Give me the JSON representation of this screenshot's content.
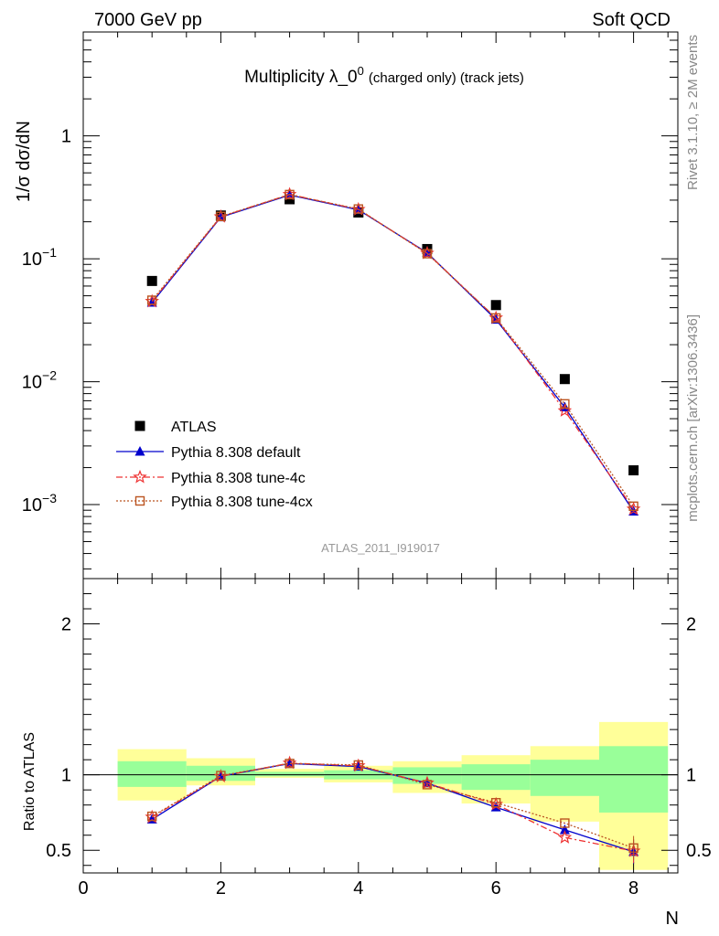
{
  "header": {
    "left": "7000 GeV pp",
    "right": "Soft QCD"
  },
  "side_text": {
    "top": "Rivet 3.1.10, ≥ 2M events",
    "bottom": "mcplots.cern.ch [arXiv:1306.3436]"
  },
  "chart_data": [
    {
      "type": "scatter",
      "title_main": "Multiplicity λ_0",
      "title_sup": "0",
      "title_suffix": "(charged only) (track jets)",
      "ylabel": "1/σ dσ/dN",
      "yscale": "log",
      "ylim": [
        0.00025,
        7
      ],
      "xlim": [
        0,
        8.6
      ],
      "watermark": "ATLAS_2011_I919017",
      "yticks": [
        {
          "base": "1",
          "exp": ""
        },
        {
          "base": "10",
          "exp": "−1"
        },
        {
          "base": "10",
          "exp": "−2"
        },
        {
          "base": "10",
          "exp": "−3"
        }
      ],
      "x": [
        1,
        2,
        3,
        4,
        5,
        6,
        7,
        8
      ],
      "series": [
        {
          "name": "ATLAS",
          "color": "#000000",
          "marker": "square-filled",
          "values": [
            0.066,
            0.225,
            0.305,
            0.238,
            0.12,
            0.042,
            0.0105,
            0.0019
          ]
        },
        {
          "name": "Pythia 8.308 default",
          "color": "#0000cc",
          "marker": "triangle-filled",
          "line": "solid",
          "values": [
            0.044,
            0.218,
            0.33,
            0.25,
            0.112,
            0.032,
            0.0062,
            0.00088
          ]
        },
        {
          "name": "Pythia 8.308 tune-4c",
          "color": "#ee3333",
          "marker": "star-open",
          "line": "dashdot",
          "values": [
            0.045,
            0.22,
            0.334,
            0.252,
            0.111,
            0.033,
            0.0058,
            0.00092
          ]
        },
        {
          "name": "Pythia 8.308 tune-4cx",
          "color": "#bb5522",
          "marker": "square-open",
          "line": "dotted",
          "values": [
            0.046,
            0.221,
            0.333,
            0.254,
            0.11,
            0.033,
            0.0066,
            0.00097
          ]
        }
      ]
    },
    {
      "type": "scatter",
      "ylabel": "Ratio to ATLAS",
      "xlabel": "N",
      "ylim": [
        0.35,
        2.3
      ],
      "xlim": [
        0,
        8.6
      ],
      "xticks": [
        "0",
        "2",
        "4",
        "6",
        "8"
      ],
      "yticks": [
        "0.5",
        "1",
        "2"
      ],
      "bands": {
        "bin_edges": [
          0.5,
          1.5,
          2.5,
          3.5,
          4.5,
          5.5,
          6.5,
          7.5,
          8.5
        ],
        "yellow_low": [
          0.83,
          0.93,
          0.98,
          0.95,
          0.88,
          0.81,
          0.69,
          0.37
        ],
        "yellow_high": [
          1.17,
          1.11,
          1.04,
          1.06,
          1.09,
          1.13,
          1.19,
          1.35
        ],
        "green_low": [
          0.92,
          0.96,
          0.99,
          0.97,
          0.94,
          0.9,
          0.86,
          0.75
        ],
        "green_high": [
          1.09,
          1.06,
          1.02,
          1.03,
          1.05,
          1.07,
          1.1,
          1.19
        ]
      },
      "x": [
        1,
        2,
        3,
        4,
        5,
        6,
        7,
        8
      ],
      "series": [
        {
          "name": "Pythia 8.308 default",
          "color": "#0000cc",
          "marker": "triangle-filled",
          "line": "solid",
          "values": [
            0.705,
            0.99,
            1.075,
            1.055,
            0.945,
            0.785,
            0.635,
            0.49
          ]
        },
        {
          "name": "Pythia 8.308 tune-4c",
          "color": "#ee3333",
          "marker": "star-open",
          "line": "dashdot",
          "values": [
            0.72,
            0.99,
            1.078,
            1.06,
            0.945,
            0.805,
            0.585,
            0.495
          ]
        },
        {
          "name": "Pythia 8.308 tune-4cx",
          "color": "#bb5522",
          "marker": "square-open",
          "line": "dotted",
          "values": [
            0.725,
            0.995,
            1.075,
            1.065,
            0.935,
            0.815,
            0.68,
            0.515
          ]
        }
      ]
    }
  ]
}
